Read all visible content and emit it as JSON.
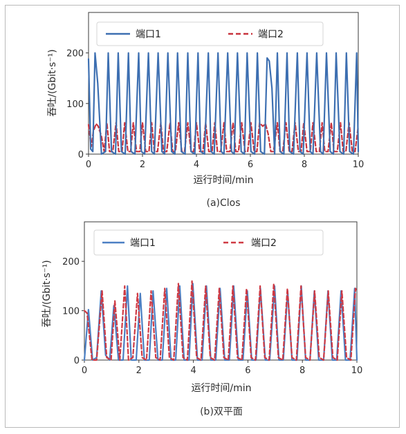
{
  "chart_data": [
    {
      "type": "line",
      "caption": "(a)Clos",
      "xlabel": "运行时间/min",
      "ylabel": "吞吐/(Gbit·s⁻¹)",
      "xlim": [
        0,
        10
      ],
      "ylim": [
        0,
        280
      ],
      "xticks": [
        0,
        2,
        4,
        6,
        8,
        10
      ],
      "yticks": [
        0,
        100,
        200
      ],
      "legend": "top",
      "series": [
        {
          "name": "端口1",
          "color": "#3d6fb1",
          "dash": "solid",
          "x": [
            0,
            0.08,
            0.16,
            0.24,
            0.34,
            0.48,
            0.63,
            0.73,
            0.85,
            1.0,
            1.1,
            1.22,
            1.36,
            1.48,
            1.58,
            1.72,
            1.86,
            1.96,
            2.08,
            2.22,
            2.34,
            2.44,
            2.58,
            2.72,
            2.82,
            2.94,
            3.08,
            3.2,
            3.3,
            3.44,
            3.58,
            3.68,
            3.8,
            3.94,
            4.06,
            4.16,
            4.3,
            4.44,
            4.54,
            4.66,
            4.8,
            4.92,
            5.02,
            5.16,
            5.3,
            5.4,
            5.52,
            5.66,
            5.78,
            5.88,
            6.02,
            6.16,
            6.26,
            6.38,
            6.52,
            6.62,
            6.7,
            6.8,
            6.9,
            7.0,
            7.1,
            7.24,
            7.36,
            7.46,
            7.6,
            7.74,
            7.84,
            7.96,
            8.1,
            8.22,
            8.32,
            8.46,
            8.6,
            8.7,
            8.82,
            8.96,
            9.08,
            9.18,
            9.32,
            9.46,
            9.56,
            9.68,
            9.82,
            9.94,
            10.0
          ],
          "y": [
            188,
            10,
            5,
            200,
            140,
            0,
            5,
            200,
            5,
            0,
            200,
            5,
            0,
            200,
            5,
            0,
            200,
            5,
            0,
            200,
            5,
            0,
            200,
            5,
            0,
            200,
            5,
            0,
            200,
            5,
            0,
            200,
            5,
            0,
            200,
            5,
            0,
            200,
            5,
            0,
            200,
            5,
            0,
            200,
            5,
            0,
            200,
            5,
            0,
            200,
            5,
            0,
            200,
            5,
            0,
            190,
            184,
            130,
            0,
            200,
            5,
            0,
            200,
            5,
            0,
            200,
            5,
            0,
            200,
            5,
            0,
            200,
            5,
            0,
            200,
            5,
            0,
            200,
            5,
            0,
            200,
            5,
            0,
            200,
            5
          ]
        },
        {
          "name": "端口2",
          "color": "#c8333d",
          "dash": "dashed",
          "x": [
            0,
            0.1,
            0.18,
            0.28,
            0.36,
            0.48,
            0.58,
            0.68,
            0.78,
            0.9,
            1.02,
            1.12,
            1.24,
            1.34,
            1.46,
            1.56,
            1.66,
            1.78,
            1.9,
            2.0,
            2.12,
            2.24,
            2.34,
            2.44,
            2.56,
            2.68,
            2.78,
            2.9,
            3.02,
            3.12,
            3.22,
            3.34,
            3.46,
            3.56,
            3.68,
            3.8,
            3.9,
            4.0,
            4.12,
            4.24,
            4.34,
            4.46,
            4.58,
            4.68,
            4.78,
            4.9,
            5.02,
            5.12,
            5.24,
            5.36,
            5.46,
            5.56,
            5.68,
            5.8,
            5.9,
            6.02,
            6.14,
            6.24,
            6.34,
            6.46,
            6.56,
            6.66,
            6.76,
            6.86,
            7.0,
            7.1,
            7.2,
            7.32,
            7.44,
            7.54,
            7.66,
            7.78,
            7.88,
            7.98,
            8.1,
            8.22,
            8.32,
            8.44,
            8.56,
            8.66,
            8.76,
            8.88,
            9.0,
            9.1,
            9.22,
            9.34,
            9.44,
            9.54,
            9.66,
            9.78,
            9.88,
            10.0
          ],
          "y": [
            58,
            15,
            45,
            60,
            55,
            35,
            5,
            62,
            5,
            5,
            62,
            5,
            5,
            62,
            5,
            5,
            62,
            5,
            5,
            62,
            5,
            5,
            62,
            5,
            5,
            62,
            5,
            5,
            62,
            5,
            5,
            62,
            5,
            5,
            62,
            5,
            5,
            62,
            5,
            5,
            62,
            5,
            5,
            62,
            5,
            5,
            62,
            5,
            5,
            62,
            5,
            5,
            62,
            5,
            5,
            62,
            5,
            5,
            62,
            55,
            60,
            40,
            5,
            5,
            62,
            5,
            5,
            62,
            5,
            5,
            62,
            5,
            5,
            62,
            5,
            5,
            62,
            5,
            5,
            62,
            5,
            5,
            62,
            5,
            5,
            62,
            5,
            5,
            62,
            5,
            5,
            55
          ]
        }
      ]
    },
    {
      "type": "line",
      "caption": "(b)双平面",
      "xlabel": "运行时间/min",
      "ylabel": "吞吐/(Gbit·s⁻¹)",
      "xlim": [
        0,
        10
      ],
      "ylim": [
        0,
        280
      ],
      "xticks": [
        0,
        2,
        4,
        6,
        8,
        10
      ],
      "yticks": [
        0,
        100,
        200
      ],
      "legend": "top",
      "series": [
        {
          "name": "端口1",
          "color": "#4b7fc3",
          "dash": "solid",
          "x": [
            0,
            0.15,
            0.3,
            0.45,
            0.62,
            0.78,
            0.93,
            1.08,
            1.25,
            1.42,
            1.58,
            1.72,
            1.9,
            2.05,
            2.2,
            2.38,
            2.52,
            2.7,
            2.86,
            3.02,
            3.18,
            3.35,
            3.5,
            3.66,
            3.84,
            3.98,
            4.15,
            4.32,
            4.48,
            4.64,
            4.82,
            4.98,
            5.15,
            5.32,
            5.48,
            5.65,
            5.82,
            5.98,
            6.14,
            6.3,
            6.46,
            6.64,
            6.8,
            6.98,
            7.14,
            7.3,
            7.46,
            7.62,
            7.8,
            7.96,
            8.12,
            8.28,
            8.44,
            8.6,
            8.78,
            8.94,
            9.1,
            9.26,
            9.42,
            9.58,
            9.75,
            9.92,
            10.0
          ],
          "y": [
            0,
            102,
            0,
            5,
            140,
            10,
            0,
            110,
            0,
            0,
            150,
            0,
            0,
            135,
            0,
            0,
            140,
            0,
            0,
            145,
            0,
            0,
            150,
            0,
            0,
            155,
            0,
            0,
            150,
            0,
            0,
            145,
            0,
            0,
            150,
            0,
            0,
            140,
            0,
            0,
            145,
            0,
            0,
            150,
            0,
            0,
            140,
            0,
            0,
            150,
            0,
            0,
            140,
            0,
            0,
            140,
            0,
            0,
            140,
            0,
            0,
            145,
            0
          ]
        },
        {
          "name": "端口2",
          "color": "#cf3a44",
          "dash": "dashed",
          "x": [
            0,
            0.1,
            0.28,
            0.45,
            0.65,
            0.82,
            0.98,
            1.12,
            1.3,
            1.48,
            1.62,
            1.78,
            1.95,
            2.12,
            2.28,
            2.45,
            2.62,
            2.78,
            2.95,
            3.12,
            3.28,
            3.45,
            3.62,
            3.78,
            3.95,
            4.12,
            4.28,
            4.45,
            4.62,
            4.78,
            4.95,
            5.12,
            5.28,
            5.45,
            5.62,
            5.78,
            5.95,
            6.12,
            6.28,
            6.45,
            6.62,
            6.78,
            6.95,
            7.12,
            7.28,
            7.45,
            7.62,
            7.78,
            7.95,
            8.12,
            8.28,
            8.45,
            8.62,
            8.78,
            8.95,
            9.12,
            9.28,
            9.45,
            9.62,
            9.78,
            9.95,
            10.0
          ],
          "y": [
            100,
            95,
            0,
            0,
            140,
            5,
            0,
            120,
            0,
            150,
            0,
            5,
            135,
            5,
            0,
            140,
            5,
            0,
            145,
            5,
            0,
            155,
            5,
            0,
            160,
            5,
            0,
            150,
            5,
            0,
            145,
            5,
            0,
            150,
            5,
            0,
            145,
            5,
            0,
            150,
            5,
            0,
            155,
            5,
            0,
            145,
            5,
            0,
            150,
            5,
            0,
            140,
            5,
            0,
            140,
            5,
            0,
            140,
            5,
            0,
            145,
            140
          ]
        }
      ]
    }
  ]
}
